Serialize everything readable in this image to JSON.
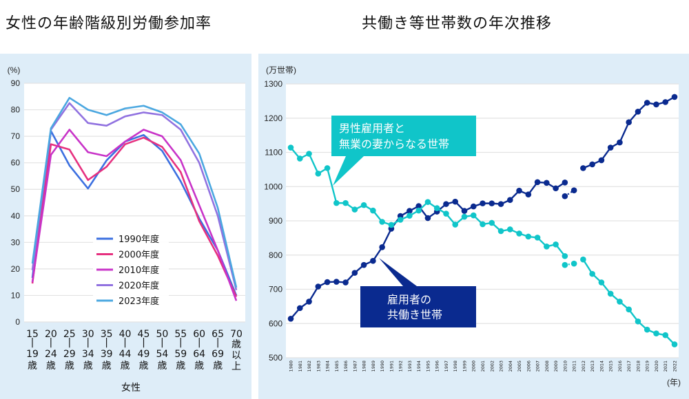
{
  "titles": {
    "left": "女性の年齢階級別労働参加率",
    "right": "共働き等世帯数の年次推移"
  },
  "chart_data": [
    {
      "type": "line",
      "title": "女性の年齢階級別労働参加率",
      "ylabel": "(%)",
      "xlabel": "女性",
      "ylim": [
        0,
        90
      ],
      "yticks": [
        0,
        10,
        20,
        30,
        40,
        50,
        60,
        70,
        80,
        90
      ],
      "grid": true,
      "legend_position": "bottom-center",
      "categories": [
        [
          "15",
          "|",
          "19",
          "歳"
        ],
        [
          "20",
          "|",
          "24",
          "歳"
        ],
        [
          "25",
          "|",
          "29",
          "歳"
        ],
        [
          "30",
          "|",
          "34",
          "歳"
        ],
        [
          "35",
          "|",
          "39",
          "歳"
        ],
        [
          "40",
          "|",
          "44",
          "歳"
        ],
        [
          "45",
          "|",
          "49",
          "歳"
        ],
        [
          "50",
          "|",
          "54",
          "歳"
        ],
        [
          "55",
          "|",
          "59",
          "歳"
        ],
        [
          "60",
          "|",
          "64",
          "歳"
        ],
        [
          "65",
          "|",
          "69",
          "歳"
        ],
        [
          "70",
          "歳",
          "以",
          "上"
        ]
      ],
      "series": [
        {
          "name": "1990年度",
          "color": "#3b6fe0",
          "values": [
            16.6,
            72.0,
            59.0,
            50.3,
            60.9,
            68.0,
            70.5,
            64.5,
            53.0,
            39.0,
            27.0,
            10.0
          ]
        },
        {
          "name": "2000年度",
          "color": "#e6307f",
          "values": [
            14.5,
            67.0,
            65.0,
            53.5,
            58.5,
            67.0,
            69.5,
            66.0,
            56.5,
            38.0,
            25.0,
            9.5
          ]
        },
        {
          "name": "2010年度",
          "color": "#c833c8",
          "values": [
            15.0,
            63.0,
            72.5,
            64.0,
            62.5,
            68.0,
            72.5,
            70.0,
            61.0,
            44.0,
            27.0,
            8.0
          ]
        },
        {
          "name": "2020年度",
          "color": "#9172e0",
          "values": [
            19.5,
            72.5,
            82.5,
            75.0,
            74.0,
            77.5,
            79.0,
            78.0,
            72.5,
            60.0,
            40.0,
            12.0
          ]
        },
        {
          "name": "2023年度",
          "color": "#4aa7e0",
          "values": [
            22.0,
            73.0,
            84.5,
            80.0,
            78.0,
            80.5,
            81.5,
            79.0,
            74.5,
            63.5,
            43.0,
            13.0
          ]
        }
      ]
    },
    {
      "type": "line",
      "title": "共働き等世帯数の年次推移",
      "ylabel": "(万世帯)",
      "xlabel": "(年)",
      "ylim": [
        500,
        1300
      ],
      "yticks": [
        500,
        600,
        700,
        800,
        900,
        1000,
        1100,
        1200,
        1300
      ],
      "grid": true,
      "x": [
        1980,
        1981,
        1982,
        1983,
        1984,
        1985,
        1986,
        1987,
        1988,
        1989,
        1990,
        1991,
        1992,
        1993,
        1994,
        1995,
        1996,
        1997,
        1998,
        1999,
        2000,
        2001,
        2002,
        2003,
        2004,
        2005,
        2006,
        2007,
        2008,
        2009,
        2010,
        2011,
        2012,
        2013,
        2014,
        2015,
        2016,
        2017,
        2018,
        2019,
        2020,
        2021,
        2022
      ],
      "series": [
        {
          "name": "雇用者の共働き世帯",
          "label_lines": [
            "雇用者の",
            "共働き世帯"
          ],
          "color": "#0a2a8f",
          "values": [
            614,
            645,
            664,
            708,
            721,
            722,
            720,
            748,
            771,
            783,
            823,
            877,
            914,
            929,
            943,
            908,
            927,
            949,
            956,
            929,
            942,
            951,
            951,
            949,
            961,
            988,
            977,
            1013,
            1011,
            995,
            1012,
            null,
            1054,
            1065,
            1077,
            1114,
            1129,
            1188,
            1219,
            1245,
            1240,
            1247,
            1262
          ],
          "dashed_segment": {
            "x": [
              2010,
              2011
            ],
            "values": [
              972,
              989
            ]
          }
        },
        {
          "name": "男性雇用者と無業の妻からなる世帯",
          "label_lines": [
            "男性雇用者と",
            "無業の妻からなる世帯"
          ],
          "color": "#10c5c9",
          "values": [
            1114,
            1082,
            1096,
            1038,
            1054,
            952,
            952,
            933,
            946,
            930,
            897,
            888,
            903,
            915,
            930,
            955,
            937,
            921,
            889,
            912,
            916,
            890,
            894,
            870,
            875,
            863,
            854,
            851,
            825,
            831,
            797,
            null,
            787,
            745,
            720,
            687,
            664,
            641,
            606,
            582,
            571,
            566,
            539
          ],
          "dashed_segment": {
            "x": [
              2010,
              2011
            ],
            "values": [
              771,
              775
            ]
          }
        }
      ]
    }
  ]
}
